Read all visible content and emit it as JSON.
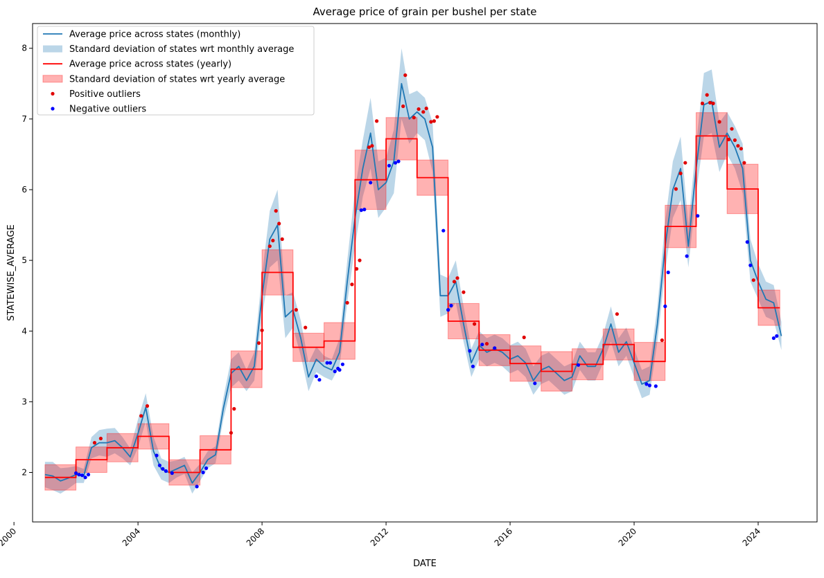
{
  "colors": {
    "monthly_line": "#1f77b4",
    "monthly_band": "#1f77b4",
    "yearly_line": "#ff0000",
    "yearly_band": "#ff0000",
    "positive_outlier": "#e00000",
    "negative_outlier": "#0000ff"
  },
  "chart_data": {
    "type": "line",
    "title": "Average price of grain per bushel per state",
    "xlabel": "DATE",
    "ylabel": "STATEWISE_AVERAGE",
    "xlim": [
      2000.6,
      2025.9
    ],
    "ylim": [
      1.3,
      8.35
    ],
    "x_ticks": [
      2000,
      2004,
      2008,
      2012,
      2016,
      2020,
      2024
    ],
    "x_tick_labels": [
      "2000",
      "2004",
      "2008",
      "2012",
      "2016",
      "2020",
      "2024"
    ],
    "y_ticks": [
      2,
      3,
      4,
      5,
      6,
      7,
      8
    ],
    "y_tick_labels": [
      "2",
      "3",
      "4",
      "5",
      "6",
      "7",
      "8"
    ],
    "legend_position": "upper-left",
    "legend": [
      {
        "label": "Average price across states (monthly)",
        "kind": "line",
        "series": "monthly"
      },
      {
        "label": "Standard deviation of states wrt monthly average",
        "kind": "band",
        "series": "monthly_band"
      },
      {
        "label": "Average price across states (yearly)",
        "kind": "line",
        "series": "yearly"
      },
      {
        "label": "Standard deviation of states wrt yearly average",
        "kind": "band",
        "series": "yearly_band"
      },
      {
        "label": "Positive outliers",
        "kind": "dot",
        "series": "positive"
      },
      {
        "label": "Negative outliers",
        "kind": "dot",
        "series": "negative"
      }
    ],
    "monthly": {
      "x": [
        2001.0,
        2001.25,
        2001.5,
        2001.75,
        2002.0,
        2002.25,
        2002.5,
        2002.75,
        2003.0,
        2003.25,
        2003.5,
        2003.75,
        2004.0,
        2004.25,
        2004.5,
        2004.75,
        2005.0,
        2005.25,
        2005.5,
        2005.75,
        2006.0,
        2006.25,
        2006.5,
        2006.75,
        2007.0,
        2007.25,
        2007.5,
        2007.75,
        2008.0,
        2008.25,
        2008.5,
        2008.75,
        2009.0,
        2009.25,
        2009.5,
        2009.75,
        2010.0,
        2010.25,
        2010.5,
        2010.75,
        2011.0,
        2011.25,
        2011.5,
        2011.75,
        2012.0,
        2012.25,
        2012.5,
        2012.75,
        2013.0,
        2013.25,
        2013.5,
        2013.75,
        2014.0,
        2014.25,
        2014.5,
        2014.75,
        2015.0,
        2015.25,
        2015.5,
        2015.75,
        2016.0,
        2016.25,
        2016.5,
        2016.75,
        2017.0,
        2017.25,
        2017.5,
        2017.75,
        2018.0,
        2018.25,
        2018.5,
        2018.75,
        2019.0,
        2019.25,
        2019.5,
        2019.75,
        2020.0,
        2020.25,
        2020.5,
        2020.75,
        2021.0,
        2021.25,
        2021.5,
        2021.75,
        2022.0,
        2022.25,
        2022.5,
        2022.75,
        2023.0,
        2023.25,
        2023.5,
        2023.75,
        2024.0,
        2024.25,
        2024.5,
        2024.75
      ],
      "values": [
        1.97,
        1.95,
        1.88,
        1.92,
        1.97,
        1.95,
        2.35,
        2.42,
        2.42,
        2.45,
        2.35,
        2.22,
        2.55,
        2.92,
        2.3,
        2.05,
        2.0,
        2.05,
        2.1,
        1.85,
        2.0,
        2.18,
        2.25,
        2.9,
        3.4,
        3.5,
        3.3,
        3.5,
        4.5,
        5.3,
        5.5,
        4.2,
        4.3,
        3.9,
        3.35,
        3.6,
        3.5,
        3.45,
        3.7,
        4.7,
        5.6,
        6.3,
        6.8,
        6.0,
        6.1,
        6.4,
        7.5,
        7.0,
        7.1,
        7.0,
        6.6,
        4.5,
        4.5,
        4.7,
        4.1,
        3.55,
        3.8,
        3.7,
        3.75,
        3.7,
        3.6,
        3.65,
        3.55,
        3.3,
        3.45,
        3.5,
        3.4,
        3.3,
        3.35,
        3.65,
        3.5,
        3.5,
        3.75,
        4.1,
        3.7,
        3.85,
        3.55,
        3.25,
        3.3,
        4.1,
        5.2,
        6.0,
        6.3,
        5.2,
        6.3,
        7.2,
        7.25,
        6.6,
        6.8,
        6.6,
        6.3,
        5.0,
        4.7,
        4.45,
        4.4,
        3.93
      ],
      "std": [
        0.18,
        0.2,
        0.18,
        0.15,
        0.12,
        0.1,
        0.15,
        0.18,
        0.2,
        0.18,
        0.15,
        0.12,
        0.2,
        0.2,
        0.2,
        0.15,
        0.15,
        0.12,
        0.12,
        0.15,
        0.12,
        0.12,
        0.12,
        0.15,
        0.2,
        0.2,
        0.15,
        0.2,
        0.3,
        0.4,
        0.5,
        0.3,
        0.25,
        0.25,
        0.2,
        0.18,
        0.15,
        0.15,
        0.2,
        0.3,
        0.4,
        0.4,
        0.5,
        0.4,
        0.35,
        0.45,
        0.5,
        0.35,
        0.3,
        0.3,
        0.35,
        0.3,
        0.25,
        0.3,
        0.25,
        0.2,
        0.2,
        0.2,
        0.2,
        0.2,
        0.2,
        0.2,
        0.2,
        0.2,
        0.2,
        0.2,
        0.2,
        0.2,
        0.2,
        0.2,
        0.2,
        0.2,
        0.2,
        0.25,
        0.2,
        0.2,
        0.2,
        0.2,
        0.2,
        0.25,
        0.35,
        0.4,
        0.45,
        0.3,
        0.35,
        0.45,
        0.45,
        0.35,
        0.3,
        0.3,
        0.35,
        0.3,
        0.25,
        0.25,
        0.25,
        0.2
      ]
    },
    "yearly": {
      "years": [
        2001,
        2002,
        2003,
        2004,
        2005,
        2006,
        2007,
        2008,
        2009,
        2010,
        2011,
        2012,
        2013,
        2014,
        2015,
        2016,
        2017,
        2018,
        2019,
        2020,
        2021,
        2022,
        2023,
        2024
      ],
      "values": [
        1.93,
        2.18,
        2.35,
        2.51,
        2.0,
        2.32,
        3.46,
        4.83,
        3.77,
        3.86,
        6.14,
        6.72,
        6.17,
        4.14,
        3.73,
        3.54,
        3.43,
        3.53,
        3.81,
        3.57,
        5.48,
        6.76,
        6.01,
        4.33
      ],
      "std": [
        0.18,
        0.18,
        0.2,
        0.18,
        0.18,
        0.2,
        0.26,
        0.32,
        0.2,
        0.26,
        0.42,
        0.3,
        0.25,
        0.25,
        0.22,
        0.25,
        0.28,
        0.22,
        0.22,
        0.27,
        0.3,
        0.33,
        0.35,
        0.25
      ],
      "end_x": 2024.7
    },
    "positive_outliers": {
      "x": [
        2002.6,
        2002.8,
        2004.1,
        2004.3,
        2007.0,
        2007.1,
        2007.9,
        2008.0,
        2008.25,
        2008.35,
        2008.45,
        2008.55,
        2008.65,
        2009.1,
        2009.4,
        2010.75,
        2010.9,
        2011.05,
        2011.15,
        2011.45,
        2011.55,
        2011.7,
        2012.55,
        2012.62,
        2012.9,
        2013.05,
        2013.2,
        2013.3,
        2013.45,
        2013.55,
        2013.65,
        2014.2,
        2014.3,
        2014.5,
        2014.85,
        2015.25,
        2016.45,
        2019.45,
        2020.9,
        2021.35,
        2021.5,
        2021.65,
        2022.2,
        2022.35,
        2022.45,
        2022.55,
        2022.75,
        2023.05,
        2023.15,
        2023.25,
        2023.35,
        2023.45,
        2023.55,
        2023.85
      ],
      "values": [
        2.42,
        2.48,
        2.8,
        2.94,
        2.56,
        2.9,
        3.83,
        4.01,
        5.2,
        5.28,
        5.7,
        5.52,
        5.3,
        4.3,
        4.05,
        4.4,
        4.66,
        4.88,
        5.0,
        6.6,
        6.62,
        6.97,
        7.18,
        7.62,
        7.02,
        7.14,
        7.1,
        7.15,
        6.96,
        6.97,
        7.03,
        4.7,
        4.75,
        4.55,
        4.1,
        3.82,
        3.91,
        4.24,
        3.87,
        6.01,
        6.23,
        6.38,
        7.22,
        7.34,
        7.23,
        7.22,
        6.96,
        6.71,
        6.86,
        6.7,
        6.62,
        6.58,
        6.38,
        4.72
      ]
    },
    "negative_outliers": {
      "x": [
        2002.0,
        2002.1,
        2002.2,
        2002.3,
        2002.4,
        2004.6,
        2004.7,
        2004.8,
        2004.9,
        2005.1,
        2005.9,
        2006.1,
        2006.2,
        2009.75,
        2009.85,
        2010.1,
        2010.2,
        2010.35,
        2010.45,
        2010.5,
        2010.6,
        2011.2,
        2011.3,
        2011.5,
        2012.1,
        2012.3,
        2012.4,
        2013.85,
        2014.0,
        2014.1,
        2014.7,
        2014.8,
        2015.1,
        2015.5,
        2016.8,
        2018.2,
        2020.4,
        2020.5,
        2020.7,
        2021.0,
        2021.1,
        2021.7,
        2022.05,
        2023.65,
        2023.75,
        2024.5,
        2024.6
      ],
      "values": [
        1.99,
        1.97,
        1.96,
        1.93,
        1.97,
        2.24,
        2.1,
        2.05,
        2.02,
        1.99,
        1.8,
        2.0,
        2.06,
        3.36,
        3.31,
        3.55,
        3.55,
        3.43,
        3.47,
        3.45,
        3.53,
        5.71,
        5.72,
        6.1,
        6.34,
        6.38,
        6.4,
        5.42,
        4.3,
        4.36,
        3.72,
        3.5,
        3.81,
        3.76,
        3.26,
        3.52,
        3.25,
        3.23,
        3.22,
        4.35,
        4.83,
        5.06,
        5.63,
        5.26,
        4.93,
        3.9,
        3.93
      ]
    }
  }
}
